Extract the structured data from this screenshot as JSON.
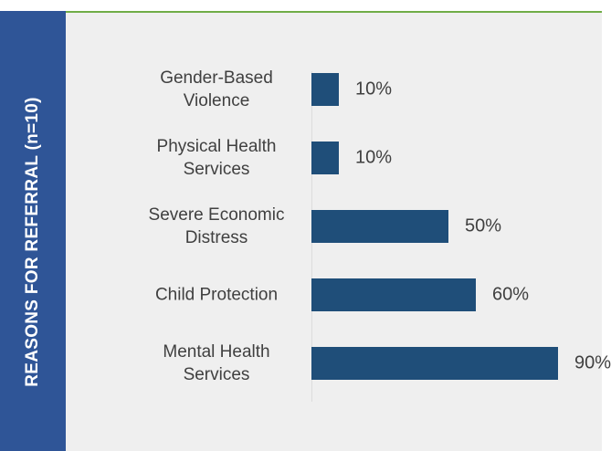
{
  "chart_data": {
    "type": "bar",
    "orientation": "horizontal",
    "title": "REASONS FOR REFERRAL (n=10)",
    "categories": [
      "Gender-Based Violence",
      "Physical Health Services",
      "Severe Economic Distress",
      "Child Protection",
      "Mental Health Services"
    ],
    "values": [
      10,
      10,
      50,
      60,
      90
    ],
    "value_labels": [
      "10%",
      "10%",
      "50%",
      "60%",
      "90%"
    ],
    "color": "#1f4e79",
    "xlim": [
      0,
      100
    ]
  }
}
